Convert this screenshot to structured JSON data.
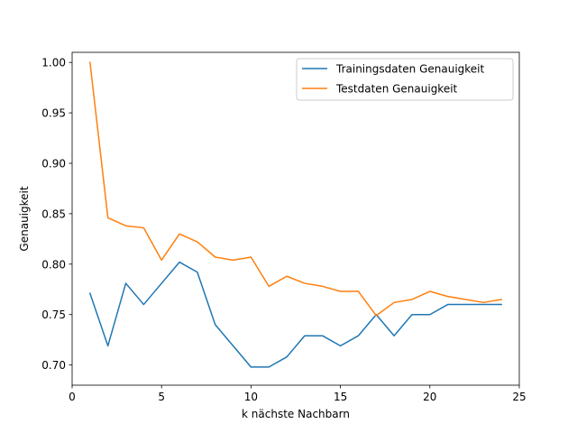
{
  "chart_data": {
    "type": "line",
    "title": "",
    "xlabel": "k nächste Nachbarn",
    "ylabel": "Genauigkeit",
    "xlim": [
      0,
      25
    ],
    "ylim": [
      0.68,
      1.01
    ],
    "xticks": [
      0,
      5,
      10,
      15,
      20,
      25
    ],
    "xtick_labels": [
      "0",
      "5",
      "10",
      "15",
      "20",
      "25"
    ],
    "yticks": [
      0.7,
      0.75,
      0.8,
      0.85,
      0.9,
      0.95,
      1.0
    ],
    "ytick_labels": [
      "0.70",
      "0.75",
      "0.80",
      "0.85",
      "0.90",
      "0.95",
      "1.00"
    ],
    "grid": false,
    "legend_position": "top-right",
    "x": [
      1,
      2,
      3,
      4,
      5,
      6,
      7,
      8,
      9,
      10,
      11,
      12,
      13,
      14,
      15,
      16,
      17,
      18,
      19,
      20,
      21,
      22,
      23,
      24
    ],
    "series": [
      {
        "name": "Trainingsdaten Genauigkeit",
        "color": "#1f77b4",
        "values": [
          0.771,
          0.719,
          0.781,
          0.76,
          0.781,
          0.802,
          0.792,
          0.74,
          0.719,
          0.698,
          0.698,
          0.708,
          0.729,
          0.729,
          0.719,
          0.729,
          0.75,
          0.729,
          0.75,
          0.75,
          0.76,
          0.76,
          0.76,
          0.76
        ]
      },
      {
        "name": "Testdaten Genauigkeit",
        "color": "#ff7f0e",
        "values": [
          1.0,
          0.846,
          0.838,
          0.836,
          0.804,
          0.83,
          0.822,
          0.807,
          0.804,
          0.807,
          0.778,
          0.788,
          0.781,
          0.778,
          0.773,
          0.773,
          0.749,
          0.762,
          0.765,
          0.773,
          0.768,
          0.765,
          0.762,
          0.765
        ]
      }
    ]
  }
}
